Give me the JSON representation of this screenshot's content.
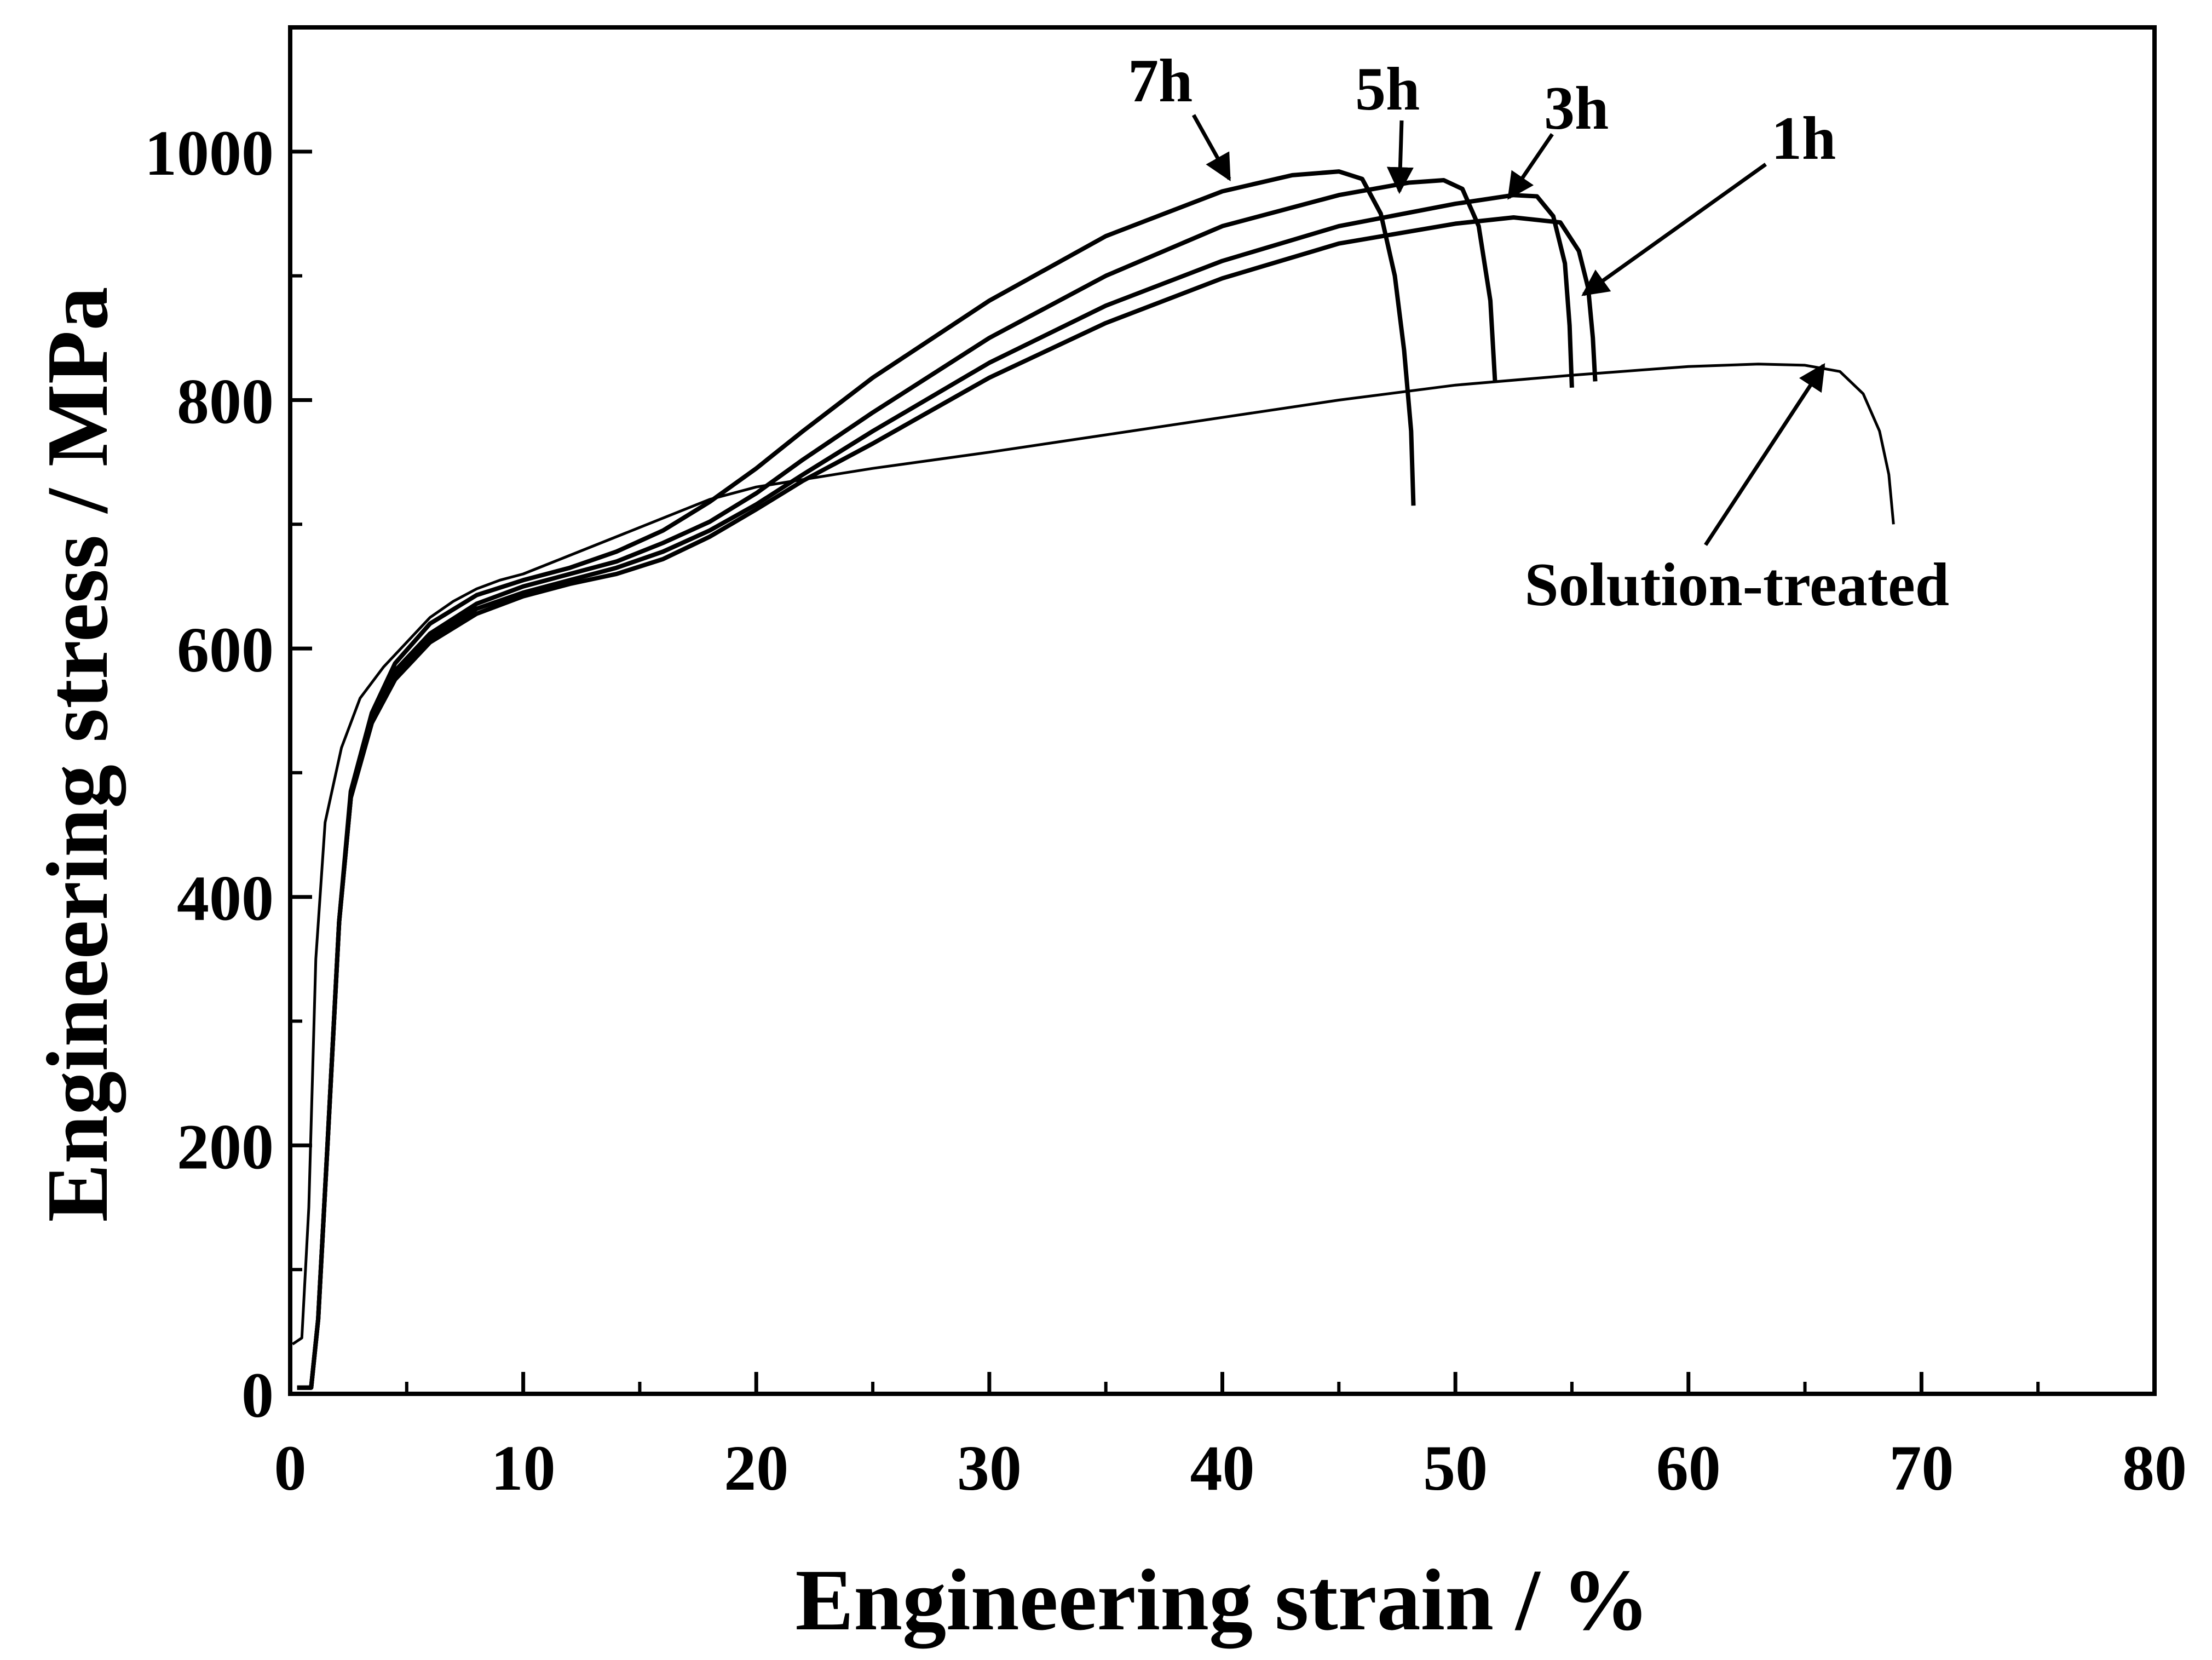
{
  "chart_data": {
    "type": "line",
    "title": "",
    "xlabel": "Engineering strain / %",
    "ylabel": "Engineering stress / MPa",
    "xlim": [
      0,
      80
    ],
    "ylim": [
      0,
      1100
    ],
    "x_ticks": [
      0,
      10,
      20,
      30,
      40,
      50,
      60,
      70,
      80
    ],
    "y_ticks": [
      0,
      200,
      400,
      600,
      800,
      1000
    ],
    "grid": false,
    "legend": "none",
    "line_color": "#000000",
    "series": [
      {
        "name": "Solution-treated",
        "points": [
          [
            0.1,
            40
          ],
          [
            0.5,
            45
          ],
          [
            0.8,
            150
          ],
          [
            1.1,
            350
          ],
          [
            1.5,
            460
          ],
          [
            2.2,
            520
          ],
          [
            3,
            560
          ],
          [
            4,
            585
          ],
          [
            5,
            605
          ],
          [
            6,
            625
          ],
          [
            7,
            638
          ],
          [
            8,
            648
          ],
          [
            9,
            655
          ],
          [
            10,
            660
          ],
          [
            12,
            675
          ],
          [
            14,
            690
          ],
          [
            16,
            705
          ],
          [
            18,
            720
          ],
          [
            20,
            730
          ],
          [
            25,
            745
          ],
          [
            30,
            758
          ],
          [
            35,
            772
          ],
          [
            40,
            786
          ],
          [
            45,
            800
          ],
          [
            50,
            812
          ],
          [
            55,
            820
          ],
          [
            60,
            827
          ],
          [
            63,
            829
          ],
          [
            65,
            828
          ],
          [
            66.5,
            823
          ],
          [
            67.5,
            805
          ],
          [
            68.2,
            775
          ],
          [
            68.6,
            740
          ],
          [
            68.8,
            700
          ]
        ],
        "annotation": {
          "text": "Solution-treated",
          "arrow_to": [
            65.8,
            828
          ]
        }
      },
      {
        "name": "1h",
        "points": [
          [
            0.3,
            5
          ],
          [
            0.9,
            5
          ],
          [
            1.2,
            60
          ],
          [
            1.6,
            200
          ],
          [
            2.1,
            380
          ],
          [
            2.6,
            480
          ],
          [
            3.5,
            540
          ],
          [
            4.5,
            575
          ],
          [
            6,
            605
          ],
          [
            8,
            628
          ],
          [
            10,
            642
          ],
          [
            12,
            652
          ],
          [
            14,
            660
          ],
          [
            16,
            672
          ],
          [
            18,
            690
          ],
          [
            20,
            712
          ],
          [
            22,
            735
          ],
          [
            25,
            765
          ],
          [
            30,
            818
          ],
          [
            35,
            862
          ],
          [
            40,
            898
          ],
          [
            45,
            926
          ],
          [
            50,
            942
          ],
          [
            52.5,
            947
          ],
          [
            54.5,
            943
          ],
          [
            55.3,
            920
          ],
          [
            55.7,
            890
          ],
          [
            55.9,
            850
          ],
          [
            56,
            815
          ]
        ],
        "annotation": {
          "text": "1h",
          "arrow_to": [
            55.5,
            885
          ]
        }
      },
      {
        "name": "3h",
        "points": [
          [
            0.3,
            5
          ],
          [
            0.9,
            5
          ],
          [
            1.2,
            60
          ],
          [
            1.6,
            200
          ],
          [
            2.1,
            380
          ],
          [
            2.6,
            480
          ],
          [
            3.5,
            540
          ],
          [
            4.5,
            578
          ],
          [
            6,
            608
          ],
          [
            8,
            632
          ],
          [
            10,
            645
          ],
          [
            12,
            655
          ],
          [
            14,
            665
          ],
          [
            16,
            678
          ],
          [
            18,
            695
          ],
          [
            20,
            716
          ],
          [
            22,
            740
          ],
          [
            25,
            775
          ],
          [
            30,
            830
          ],
          [
            35,
            876
          ],
          [
            40,
            912
          ],
          [
            45,
            940
          ],
          [
            50,
            958
          ],
          [
            52.5,
            965
          ],
          [
            53.5,
            964
          ],
          [
            54.2,
            948
          ],
          [
            54.7,
            910
          ],
          [
            54.9,
            860
          ],
          [
            55,
            810
          ]
        ],
        "annotation": {
          "text": "3h",
          "arrow_to": [
            52.3,
            963
          ]
        }
      },
      {
        "name": "5h",
        "points": [
          [
            0.3,
            5
          ],
          [
            0.9,
            5
          ],
          [
            1.2,
            60
          ],
          [
            1.6,
            200
          ],
          [
            2.1,
            380
          ],
          [
            2.6,
            480
          ],
          [
            3.5,
            543
          ],
          [
            4.5,
            582
          ],
          [
            6,
            612
          ],
          [
            8,
            636
          ],
          [
            10,
            650
          ],
          [
            12,
            660
          ],
          [
            14,
            670
          ],
          [
            16,
            685
          ],
          [
            18,
            702
          ],
          [
            20,
            725
          ],
          [
            22,
            752
          ],
          [
            25,
            790
          ],
          [
            30,
            850
          ],
          [
            35,
            900
          ],
          [
            40,
            940
          ],
          [
            45,
            965
          ],
          [
            48,
            975
          ],
          [
            49.5,
            977
          ],
          [
            50.3,
            970
          ],
          [
            51,
            940
          ],
          [
            51.5,
            880
          ],
          [
            51.7,
            815
          ]
        ],
        "annotation": {
          "text": "5h",
          "arrow_to": [
            47.6,
            968
          ]
        }
      },
      {
        "name": "7h",
        "points": [
          [
            0.3,
            5
          ],
          [
            0.9,
            5
          ],
          [
            1.2,
            60
          ],
          [
            1.6,
            200
          ],
          [
            2.1,
            380
          ],
          [
            2.6,
            485
          ],
          [
            3.5,
            548
          ],
          [
            4.5,
            588
          ],
          [
            6,
            620
          ],
          [
            8,
            643
          ],
          [
            10,
            655
          ],
          [
            12,
            665
          ],
          [
            14,
            678
          ],
          [
            16,
            695
          ],
          [
            18,
            718
          ],
          [
            20,
            745
          ],
          [
            22,
            775
          ],
          [
            25,
            818
          ],
          [
            30,
            880
          ],
          [
            35,
            932
          ],
          [
            40,
            968
          ],
          [
            43,
            981
          ],
          [
            45,
            984
          ],
          [
            46,
            978
          ],
          [
            46.8,
            950
          ],
          [
            47.4,
            900
          ],
          [
            47.8,
            840
          ],
          [
            48.1,
            775
          ],
          [
            48.2,
            715
          ]
        ],
        "annotation": {
          "text": "7h",
          "arrow_to": [
            40.3,
            978
          ]
        }
      }
    ]
  }
}
